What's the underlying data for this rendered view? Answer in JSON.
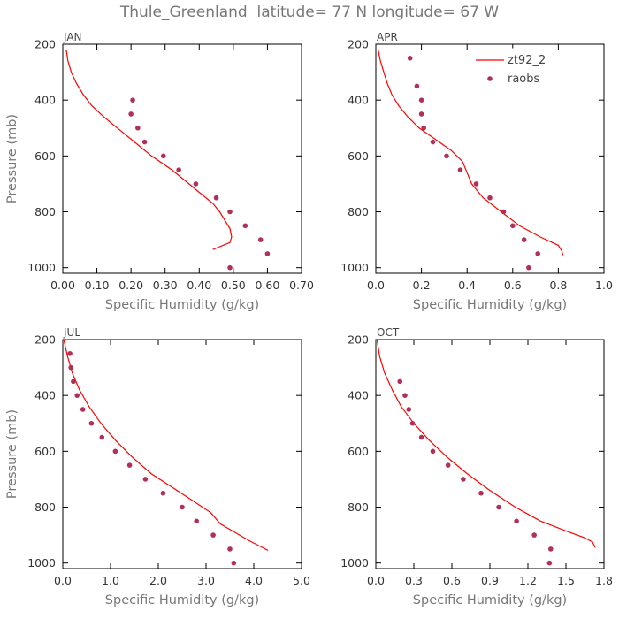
{
  "page": {
    "title": "Thule_Greenland  latitude= 77 N longitude= 67 W"
  },
  "colors": {
    "model_line": "#ff0000",
    "obs_points": "#b0305a",
    "axes": "#000000"
  },
  "legend": {
    "entries": [
      {
        "label": "zt92_2",
        "kind": "line"
      },
      {
        "label": "raobs",
        "kind": "marker"
      }
    ],
    "placement": "top-right of APR panel"
  },
  "chart_data": [
    {
      "type": "line",
      "panel": "JAN",
      "title": "JAN",
      "xlabel": "Specific Humidity (g/kg)",
      "ylabel": "Pressure (mb)",
      "xlim": [
        0,
        0.7
      ],
      "ylim": [
        1020,
        200
      ],
      "xticks": [
        "0.00",
        "0.10",
        "0.20",
        "0.30",
        "0.40",
        "0.50",
        "0.60",
        "0.70"
      ],
      "yticks": [
        "200",
        "400",
        "600",
        "800",
        "1000"
      ],
      "series": [
        {
          "name": "zt92_2",
          "kind": "line",
          "points": [
            [
              0.01,
              220
            ],
            [
              0.015,
              260
            ],
            [
              0.025,
              300
            ],
            [
              0.04,
              340
            ],
            [
              0.06,
              380
            ],
            [
              0.085,
              420
            ],
            [
              0.12,
              460
            ],
            [
              0.16,
              500
            ],
            [
              0.21,
              550
            ],
            [
              0.26,
              600
            ],
            [
              0.32,
              650
            ],
            [
              0.37,
              700
            ],
            [
              0.41,
              740
            ],
            [
              0.44,
              770
            ],
            [
              0.46,
              800
            ],
            [
              0.475,
              830
            ],
            [
              0.49,
              860
            ],
            [
              0.495,
              890
            ],
            [
              0.49,
              910
            ],
            [
              0.46,
              925
            ],
            [
              0.44,
              935
            ]
          ]
        },
        {
          "name": "raobs",
          "kind": "scatter",
          "points": [
            [
              0.205,
              400
            ],
            [
              0.2,
              450
            ],
            [
              0.22,
              500
            ],
            [
              0.24,
              550
            ],
            [
              0.295,
              600
            ],
            [
              0.34,
              650
            ],
            [
              0.39,
              700
            ],
            [
              0.45,
              750
            ],
            [
              0.49,
              800
            ],
            [
              0.535,
              850
            ],
            [
              0.58,
              900
            ],
            [
              0.6,
              950
            ],
            [
              0.49,
              1000
            ]
          ]
        }
      ]
    },
    {
      "type": "line",
      "panel": "APR",
      "title": "APR",
      "xlabel": "Specific Humidity (g/kg)",
      "ylabel": "",
      "xlim": [
        0,
        1.0
      ],
      "ylim": [
        1020,
        200
      ],
      "xticks": [
        "0.0",
        "0.2",
        "0.4",
        "0.6",
        "0.8",
        "1.0"
      ],
      "yticks": [
        "200",
        "400",
        "600",
        "800",
        "1000"
      ],
      "series": [
        {
          "name": "zt92_2",
          "kind": "line",
          "points": [
            [
              0.01,
              220
            ],
            [
              0.02,
              260
            ],
            [
              0.035,
              300
            ],
            [
              0.05,
              340
            ],
            [
              0.07,
              380
            ],
            [
              0.1,
              420
            ],
            [
              0.14,
              460
            ],
            [
              0.19,
              500
            ],
            [
              0.26,
              540
            ],
            [
              0.33,
              580
            ],
            [
              0.38,
              620
            ],
            [
              0.4,
              660
            ],
            [
              0.42,
              700
            ],
            [
              0.47,
              750
            ],
            [
              0.55,
              800
            ],
            [
              0.63,
              850
            ],
            [
              0.72,
              890
            ],
            [
              0.8,
              920
            ],
            [
              0.815,
              940
            ],
            [
              0.82,
              955
            ]
          ]
        },
        {
          "name": "raobs",
          "kind": "scatter",
          "points": [
            [
              0.15,
              250
            ],
            [
              0.18,
              350
            ],
            [
              0.2,
              400
            ],
            [
              0.2,
              450
            ],
            [
              0.21,
              500
            ],
            [
              0.25,
              550
            ],
            [
              0.31,
              600
            ],
            [
              0.37,
              650
            ],
            [
              0.44,
              700
            ],
            [
              0.5,
              750
            ],
            [
              0.56,
              800
            ],
            [
              0.6,
              850
            ],
            [
              0.65,
              900
            ],
            [
              0.71,
              950
            ],
            [
              0.67,
              1000
            ]
          ]
        }
      ]
    },
    {
      "type": "line",
      "panel": "JUL",
      "title": "JUL",
      "xlabel": "Specific Humidity (g/kg)",
      "ylabel": "Pressure (mb)",
      "xlim": [
        0,
        5.0
      ],
      "ylim": [
        1020,
        200
      ],
      "xticks": [
        "0.0",
        "1.0",
        "2.0",
        "3.0",
        "4.0",
        "5.0"
      ],
      "yticks": [
        "200",
        "400",
        "600",
        "800",
        "1000"
      ],
      "series": [
        {
          "name": "zt92_2",
          "kind": "line",
          "points": [
            [
              0.02,
              200
            ],
            [
              0.1,
              260
            ],
            [
              0.2,
              320
            ],
            [
              0.35,
              380
            ],
            [
              0.55,
              440
            ],
            [
              0.8,
              500
            ],
            [
              1.1,
              560
            ],
            [
              1.45,
              620
            ],
            [
              1.85,
              680
            ],
            [
              2.3,
              730
            ],
            [
              2.75,
              780
            ],
            [
              3.1,
              820
            ],
            [
              3.3,
              860
            ],
            [
              3.6,
              890
            ],
            [
              3.9,
              920
            ],
            [
              4.3,
              955
            ]
          ]
        },
        {
          "name": "raobs",
          "kind": "scatter",
          "points": [
            [
              0.15,
              250
            ],
            [
              0.17,
              300
            ],
            [
              0.22,
              350
            ],
            [
              0.3,
              400
            ],
            [
              0.42,
              450
            ],
            [
              0.6,
              500
            ],
            [
              0.82,
              550
            ],
            [
              1.1,
              600
            ],
            [
              1.4,
              650
            ],
            [
              1.73,
              700
            ],
            [
              2.1,
              750
            ],
            [
              2.5,
              800
            ],
            [
              2.8,
              850
            ],
            [
              3.15,
              900
            ],
            [
              3.5,
              950
            ],
            [
              3.58,
              1000
            ]
          ]
        }
      ]
    },
    {
      "type": "line",
      "panel": "OCT",
      "title": "OCT",
      "xlabel": "Specific Humidity (g/kg)",
      "ylabel": "",
      "xlim": [
        0,
        1.8
      ],
      "ylim": [
        1020,
        200
      ],
      "xticks": [
        "0.0",
        "0.3",
        "0.6",
        "0.9",
        "1.2",
        "1.5",
        "1.8"
      ],
      "yticks": [
        "200",
        "400",
        "600",
        "800",
        "1000"
      ],
      "series": [
        {
          "name": "zt92_2",
          "kind": "line",
          "points": [
            [
              0.01,
              200
            ],
            [
              0.03,
              260
            ],
            [
              0.07,
              320
            ],
            [
              0.13,
              380
            ],
            [
              0.2,
              440
            ],
            [
              0.3,
              500
            ],
            [
              0.42,
              560
            ],
            [
              0.56,
              620
            ],
            [
              0.72,
              680
            ],
            [
              0.9,
              740
            ],
            [
              1.1,
              800
            ],
            [
              1.3,
              850
            ],
            [
              1.5,
              885
            ],
            [
              1.65,
              910
            ],
            [
              1.71,
              925
            ],
            [
              1.73,
              945
            ]
          ]
        },
        {
          "name": "raobs",
          "kind": "scatter",
          "points": [
            [
              0.19,
              350
            ],
            [
              0.23,
              400
            ],
            [
              0.26,
              450
            ],
            [
              0.29,
              500
            ],
            [
              0.36,
              550
            ],
            [
              0.45,
              600
            ],
            [
              0.57,
              650
            ],
            [
              0.69,
              700
            ],
            [
              0.83,
              750
            ],
            [
              0.97,
              800
            ],
            [
              1.11,
              850
            ],
            [
              1.25,
              900
            ],
            [
              1.38,
              950
            ],
            [
              1.37,
              1000
            ]
          ]
        }
      ]
    }
  ]
}
